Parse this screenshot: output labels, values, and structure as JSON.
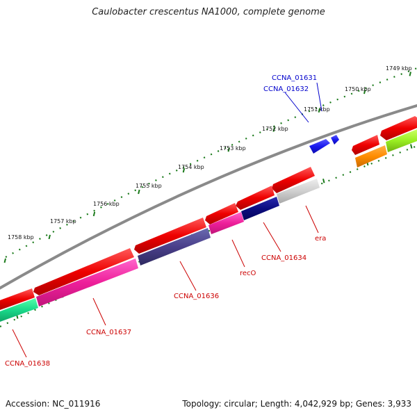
{
  "title": "Caulobacter crescentus NA1000, complete genome",
  "footer": {
    "accession": "Accession: NC_011916",
    "summary": "Topology: circular; Length: 4,042,929 bp; Genes: 3,933"
  },
  "colors": {
    "backbone": "#8a8a8a",
    "ticks": "#1a7a1a",
    "forward_cds": "#ee0000",
    "reverse_label": "#cc0000",
    "forward_label": "#0000cc",
    "blue_gene": "#1a1aee"
  },
  "scale": {
    "unit": "kbp",
    "ticks": [
      {
        "label": "1749 kbp",
        "value": 1749
      },
      {
        "label": "1750 kbp",
        "value": 1750
      },
      {
        "label": "1751 kbp",
        "value": 1751
      },
      {
        "label": "1752 kbp",
        "value": 1752
      },
      {
        "label": "1753 kbp",
        "value": 1753
      },
      {
        "label": "1754 kbp",
        "value": 1754
      },
      {
        "label": "1755 kbp",
        "value": 1755
      },
      {
        "label": "1756 kbp",
        "value": 1756
      },
      {
        "label": "1757 kbp",
        "value": 1757
      },
      {
        "label": "1758 kbp",
        "value": 1758
      }
    ]
  },
  "gene_labels": {
    "forward": [
      {
        "name": "CCNA_01631"
      },
      {
        "name": "CCNA_01632"
      }
    ],
    "reverse": [
      {
        "name": "era"
      },
      {
        "name": "CCNA_01634"
      },
      {
        "name": "recO"
      },
      {
        "name": "CCNA_01636"
      },
      {
        "name": "CCNA_01637"
      },
      {
        "name": "CCNA_01638"
      }
    ]
  }
}
